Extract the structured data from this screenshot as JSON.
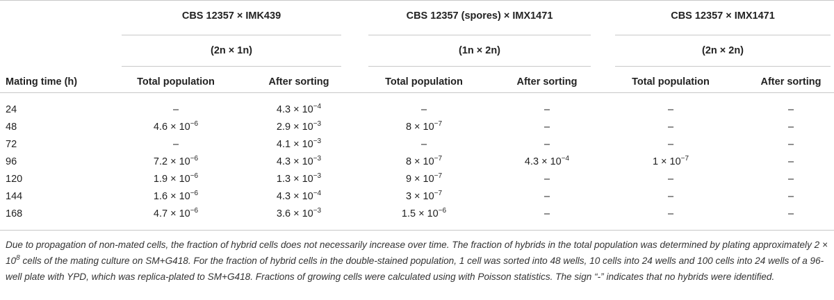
{
  "table": {
    "groups": [
      {
        "title": "CBS 12357 × IMK439",
        "ploidy": "(2n × 1n)"
      },
      {
        "title": "CBS 12357 (spores) × IMX1471",
        "ploidy": "(1n × 2n)"
      },
      {
        "title": "CBS 12357 × IMX1471",
        "ploidy": "(2n × 2n)"
      }
    ],
    "columns": [
      "Mating time (h)",
      "Total population",
      "After sorting",
      "Total population",
      "After sorting",
      "Total population",
      "After sorting"
    ],
    "rows": [
      [
        "24",
        "–",
        {
          "base": "4.3 × 10",
          "sup": "−4"
        },
        "–",
        "–",
        "–",
        "–"
      ],
      [
        "48",
        {
          "base": "4.6 × 10",
          "sup": "−6"
        },
        {
          "base": "2.9 × 10",
          "sup": "−3"
        },
        {
          "base": "8 × 10",
          "sup": "−7"
        },
        "–",
        "–",
        "–"
      ],
      [
        "72",
        "–",
        {
          "base": "4.1 × 10",
          "sup": "−3"
        },
        "–",
        "–",
        "–",
        "–"
      ],
      [
        "96",
        {
          "base": "7.2 × 10",
          "sup": "−6"
        },
        {
          "base": "4.3 × 10",
          "sup": "−3"
        },
        {
          "base": "8 × 10",
          "sup": "−7"
        },
        {
          "base": "4.3 × 10",
          "sup": "−4"
        },
        {
          "base": "1 × 10",
          "sup": "−7"
        },
        "–"
      ],
      [
        "120",
        {
          "base": "1.9 × 10",
          "sup": "−6"
        },
        {
          "base": "1.3 × 10",
          "sup": "−3"
        },
        {
          "base": "9 × 10",
          "sup": "−7"
        },
        "–",
        "–",
        "–"
      ],
      [
        "144",
        {
          "base": "1.6 × 10",
          "sup": "−6"
        },
        {
          "base": "4.3 × 10",
          "sup": "−4"
        },
        {
          "base": "3 × 10",
          "sup": "−7"
        },
        "–",
        "–",
        "–"
      ],
      [
        "168",
        {
          "base": "4.7 × 10",
          "sup": "−6"
        },
        {
          "base": "3.6 × 10",
          "sup": "−3"
        },
        {
          "base": "1.5 × 10",
          "sup": "−6"
        },
        "–",
        "–",
        "–"
      ]
    ]
  },
  "footnote": {
    "before": "Due to propagation of non-mated cells, the fraction of hybrid cells does not necessarily increase over time. The fraction of hybrids in the total population was determined by plating approximately 2 × 10",
    "sup": "8",
    "after": " cells of the mating culture on SM+G418. For the fraction of hybrid cells in the double-stained population, 1 cell was sorted into 48 wells, 10 cells into 24 wells and 100 cells into 24 wells of a 96-well plate with YPD, which was replica-plated to SM+G418. Fractions of growing cells were calculated using with Poisson statistics. The sign “-” indicates that no hybrids were identified."
  }
}
